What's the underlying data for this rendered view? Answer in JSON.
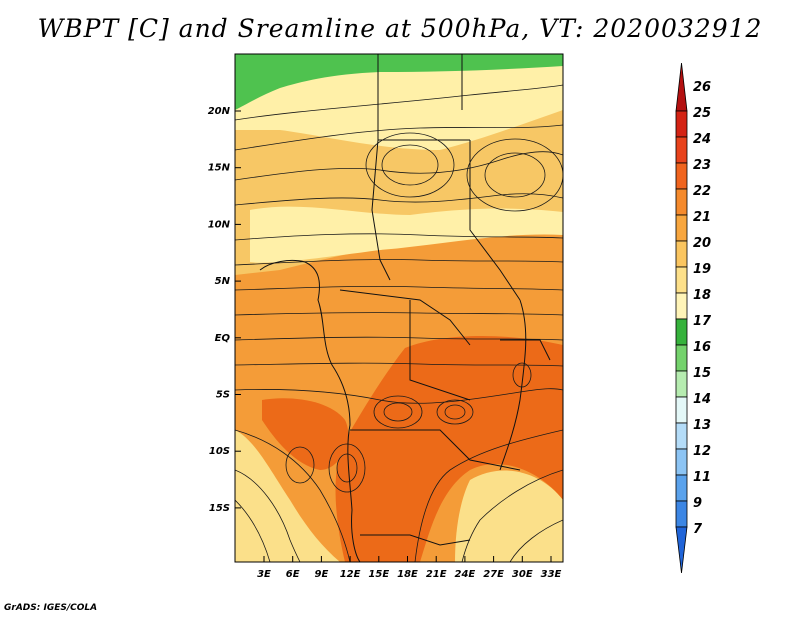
{
  "title": "WBPT [C] and Sreamline at 500hPa, VT: 2020032912",
  "credit": "GrADS: IGES/COLA",
  "map": {
    "lat_labels": [
      "20N",
      "15N",
      "10N",
      "5N",
      "EQ",
      "5S",
      "10S",
      "15S"
    ],
    "lon_labels": [
      "3E",
      "6E",
      "9E",
      "12E",
      "15E",
      "18E",
      "21E",
      "24E",
      "27E",
      "30E",
      "33E"
    ],
    "regions": [
      {
        "name": "green-north",
        "color": "#4fc24f"
      },
      {
        "name": "light-band-north",
        "color": "#fff0a8"
      },
      {
        "name": "tan-north",
        "color": "#f7c765"
      },
      {
        "name": "orange-central",
        "color": "#f49c38"
      },
      {
        "name": "dark-orange-south",
        "color": "#ec6a18"
      },
      {
        "name": "pale-southwest",
        "color": "#fbe08a"
      }
    ]
  },
  "colorbar": {
    "levels": [
      {
        "label": "26",
        "color": "#b31010"
      },
      {
        "label": "25",
        "color": "#d42314"
      },
      {
        "label": "24",
        "color": "#e8431c"
      },
      {
        "label": "23",
        "color": "#f0641e"
      },
      {
        "label": "22",
        "color": "#f58a2c"
      },
      {
        "label": "21",
        "color": "#f8a63e"
      },
      {
        "label": "20",
        "color": "#fac560"
      },
      {
        "label": "19",
        "color": "#fde08a"
      },
      {
        "label": "18",
        "color": "#fff4b8"
      },
      {
        "label": "17",
        "color": "#36b23c"
      },
      {
        "label": "16",
        "color": "#74d26c"
      },
      {
        "label": "15",
        "color": "#b6ecb0"
      },
      {
        "label": "14",
        "color": "#e4f8f8"
      },
      {
        "label": "13",
        "color": "#b4dcf8"
      },
      {
        "label": "12",
        "color": "#8cc4f4"
      },
      {
        "label": "11",
        "color": "#5aa2ec"
      },
      {
        "label": "9",
        "color": "#3c86e4"
      },
      {
        "label": "7",
        "color": "#2064d8"
      }
    ]
  }
}
